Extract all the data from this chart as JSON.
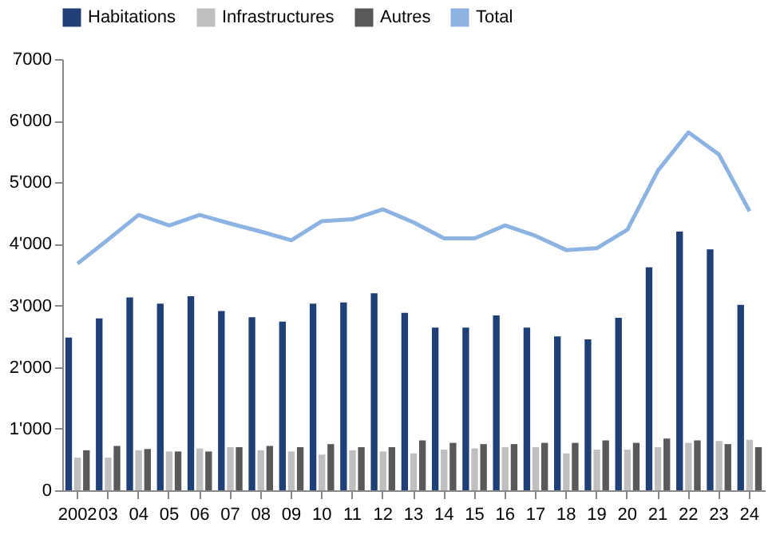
{
  "chart_data": {
    "type": "bar",
    "categories": [
      "2002",
      "03",
      "04",
      "05",
      "06",
      "07",
      "08",
      "09",
      "10",
      "11",
      "12",
      "13",
      "14",
      "15",
      "16",
      "17",
      "18",
      "19",
      "20",
      "21",
      "22",
      "23",
      "24"
    ],
    "series": [
      {
        "name": "Habitations",
        "color": "#1f3f77",
        "values": [
          2480,
          2790,
          3130,
          3030,
          3150,
          2910,
          2810,
          2740,
          3030,
          3050,
          3200,
          2880,
          2640,
          2640,
          2840,
          2640,
          2500,
          2450,
          2800,
          3620,
          4200,
          3910,
          3010
        ]
      },
      {
        "name": "Infrastructures",
        "color": "#bfbfbf",
        "values": [
          530,
          530,
          650,
          630,
          680,
          700,
          650,
          630,
          580,
          650,
          630,
          600,
          660,
          680,
          700,
          700,
          600,
          660,
          660,
          700,
          770,
          800,
          820
        ]
      },
      {
        "name": "Autres",
        "color": "#595959",
        "values": [
          650,
          720,
          670,
          630,
          630,
          700,
          720,
          700,
          750,
          700,
          700,
          810,
          770,
          750,
          750,
          770,
          770,
          810,
          770,
          840,
          810,
          750,
          700
        ]
      },
      {
        "name": "Total",
        "type": "line",
        "color": "#8db3e2",
        "values": [
          3680,
          4070,
          4470,
          4300,
          4470,
          4330,
          4200,
          4060,
          4370,
          4400,
          4560,
          4350,
          4090,
          4090,
          4300,
          4130,
          3900,
          3930,
          4230,
          5190,
          5810,
          5450,
          4530
        ]
      }
    ],
    "ylim": [
      0,
      7000
    ],
    "yticks": [
      {
        "value": 0,
        "label": "0"
      },
      {
        "value": 1000,
        "label": "1'000"
      },
      {
        "value": 2000,
        "label": "2'000"
      },
      {
        "value": 3000,
        "label": "3'000"
      },
      {
        "value": 4000,
        "label": "4'000"
      },
      {
        "value": 5000,
        "label": "5'000"
      },
      {
        "value": 6000,
        "label": "6'000"
      },
      7000
    ],
    "grid": false,
    "legend": "top",
    "marker": "none",
    "line_style": "solid"
  }
}
